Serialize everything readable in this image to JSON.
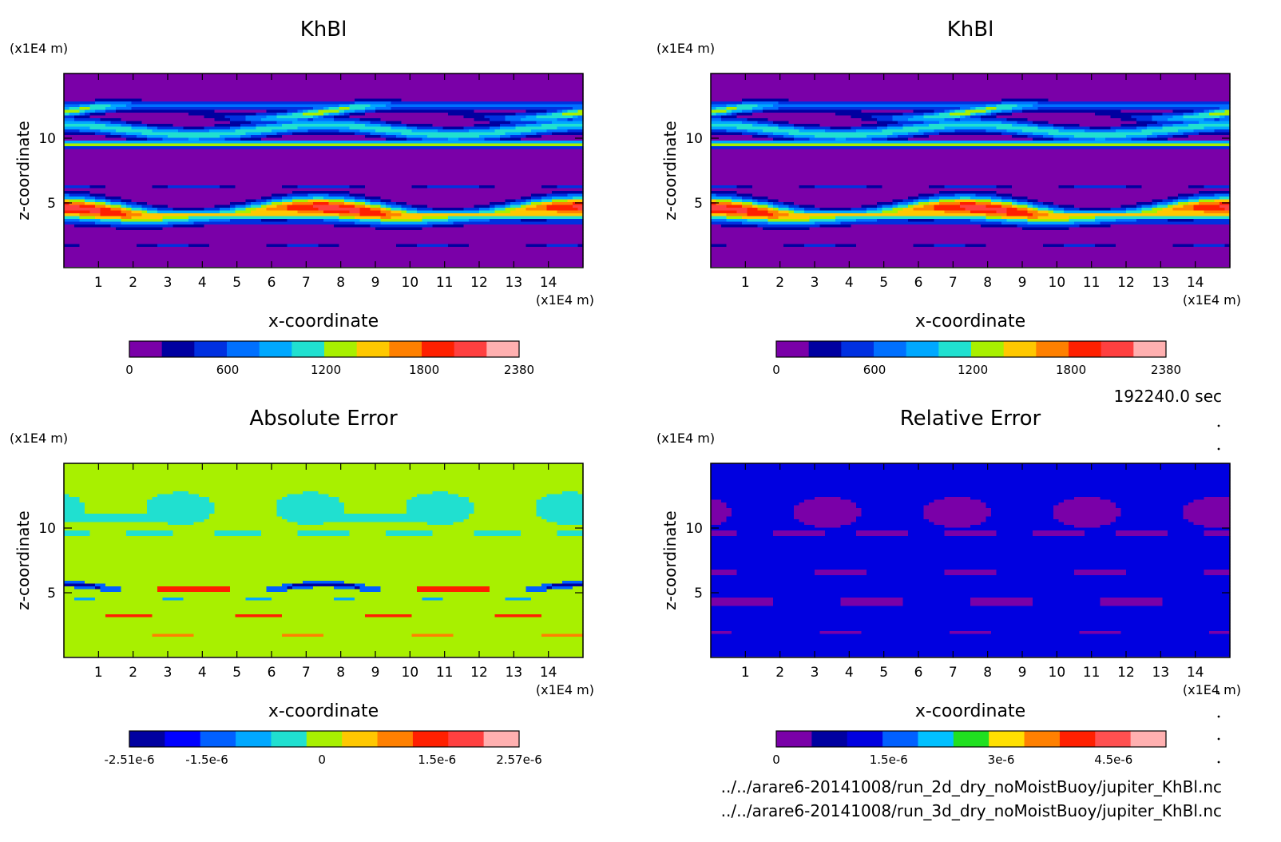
{
  "time_label": "192240.0 sec",
  "file_lines": [
    "../../arare6-20141008/run_2d_dry_noMoistBuoy/jupiter_KhBl.nc",
    "../../arare6-20141008/run_3d_dry_noMoistBuoy/jupiter_KhBl.nc"
  ],
  "chart_data": [
    {
      "type": "heatmap",
      "title": "KhBl",
      "xlabel": "x-coordinate",
      "ylabel": "z-coordinate",
      "x_unit": "(x1E4 m)",
      "y_unit": "(x1E4 m)",
      "xlim": [
        0,
        15
      ],
      "ylim": [
        0,
        15
      ],
      "x_ticks": [
        "1",
        "2",
        "3",
        "4",
        "5",
        "6",
        "7",
        "8",
        "9",
        "10",
        "11",
        "12",
        "13",
        "14"
      ],
      "y_ticks": [
        "5",
        "10"
      ],
      "colorbar": {
        "colors": [
          "#7a00a8",
          "#0000a0",
          "#0030e0",
          "#0070ff",
          "#00a8ff",
          "#20e0d0",
          "#a8f000",
          "#ffc800",
          "#ff8000",
          "#ff2000",
          "#ff4040",
          "#ffb0b0"
        ],
        "labels": [
          "0",
          "600",
          "1200",
          "1800",
          "2380"
        ],
        "label_values": [
          0,
          600,
          1200,
          1800,
          2380
        ],
        "range": [
          0,
          2380
        ]
      },
      "features": [
        {
          "kind": "band",
          "z_center": 9.5,
          "z_half": 0.35,
          "level": 7
        },
        {
          "kind": "band",
          "z_center": 10.6,
          "z_half": 0.45,
          "level": 6
        },
        {
          "kind": "wave_band",
          "z_center": 4.2,
          "z_half": 0.9,
          "level": 10,
          "phase": 0
        },
        {
          "kind": "thin_band",
          "z_center": 3.3,
          "z_half": 0.12,
          "level": 4
        }
      ]
    },
    {
      "type": "heatmap",
      "title": "KhBl",
      "xlabel": "x-coordinate",
      "ylabel": "z-coordinate",
      "x_unit": "(x1E4 m)",
      "y_unit": "(x1E4 m)",
      "xlim": [
        0,
        15
      ],
      "ylim": [
        0,
        15
      ],
      "x_ticks": [
        "1",
        "2",
        "3",
        "4",
        "5",
        "6",
        "7",
        "8",
        "9",
        "10",
        "11",
        "12",
        "13",
        "14"
      ],
      "y_ticks": [
        "5",
        "10"
      ],
      "colorbar": {
        "colors": [
          "#7a00a8",
          "#0000a0",
          "#0030e0",
          "#0070ff",
          "#00a8ff",
          "#20e0d0",
          "#a8f000",
          "#ffc800",
          "#ff8000",
          "#ff2000",
          "#ff4040",
          "#ffb0b0"
        ],
        "labels": [
          "0",
          "600",
          "1200",
          "1800",
          "2380"
        ],
        "label_values": [
          0,
          600,
          1200,
          1800,
          2380
        ],
        "range": [
          0,
          2380
        ]
      }
    },
    {
      "type": "heatmap",
      "title": "Absolute Error",
      "xlabel": "x-coordinate",
      "ylabel": "z-coordinate",
      "x_unit": "(x1E4 m)",
      "y_unit": "(x1E4 m)",
      "xlim": [
        0,
        15
      ],
      "ylim": [
        0,
        15
      ],
      "x_ticks": [
        "1",
        "2",
        "3",
        "4",
        "5",
        "6",
        "7",
        "8",
        "9",
        "10",
        "11",
        "12",
        "13",
        "14"
      ],
      "y_ticks": [
        "5",
        "10"
      ],
      "colorbar": {
        "colors": [
          "#0000a0",
          "#0000ff",
          "#0060ff",
          "#00a8ff",
          "#20e0d0",
          "#a8f000",
          "#ffc800",
          "#ff8000",
          "#ff2000",
          "#ff4040",
          "#ffb0b0"
        ],
        "labels": [
          "-2.51e-6",
          "-1.5e-6",
          "0",
          "1.5e-6",
          "2.57e-6"
        ],
        "label_values": [
          -2.51e-06,
          -1.5e-06,
          0,
          1.5e-06,
          2.57e-06
        ],
        "range": [
          -2.51e-06,
          2.57e-06
        ]
      }
    },
    {
      "type": "heatmap",
      "title": "Relative Error",
      "xlabel": "x-coordinate",
      "ylabel": "z-coordinate",
      "x_unit": "(x1E4 m)",
      "y_unit": "(x1E4 m)",
      "xlim": [
        0,
        15
      ],
      "ylim": [
        0,
        15
      ],
      "x_ticks": [
        "1",
        "2",
        "3",
        "4",
        "5",
        "6",
        "7",
        "8",
        "9",
        "10",
        "11",
        "12",
        "13",
        "14"
      ],
      "y_ticks": [
        "5",
        "10"
      ],
      "colorbar": {
        "colors": [
          "#7a00a8",
          "#0000a0",
          "#0000e0",
          "#0060ff",
          "#00c0ff",
          "#20e020",
          "#ffe000",
          "#ff8000",
          "#ff2000",
          "#ff5050",
          "#ffb0b0"
        ],
        "labels": [
          "0",
          "1.5e-6",
          "3e-6",
          "4.5e-6"
        ],
        "label_values": [
          0,
          1.5e-06,
          3e-06,
          4.5e-06
        ],
        "range": [
          0,
          5.2e-06
        ]
      }
    }
  ]
}
